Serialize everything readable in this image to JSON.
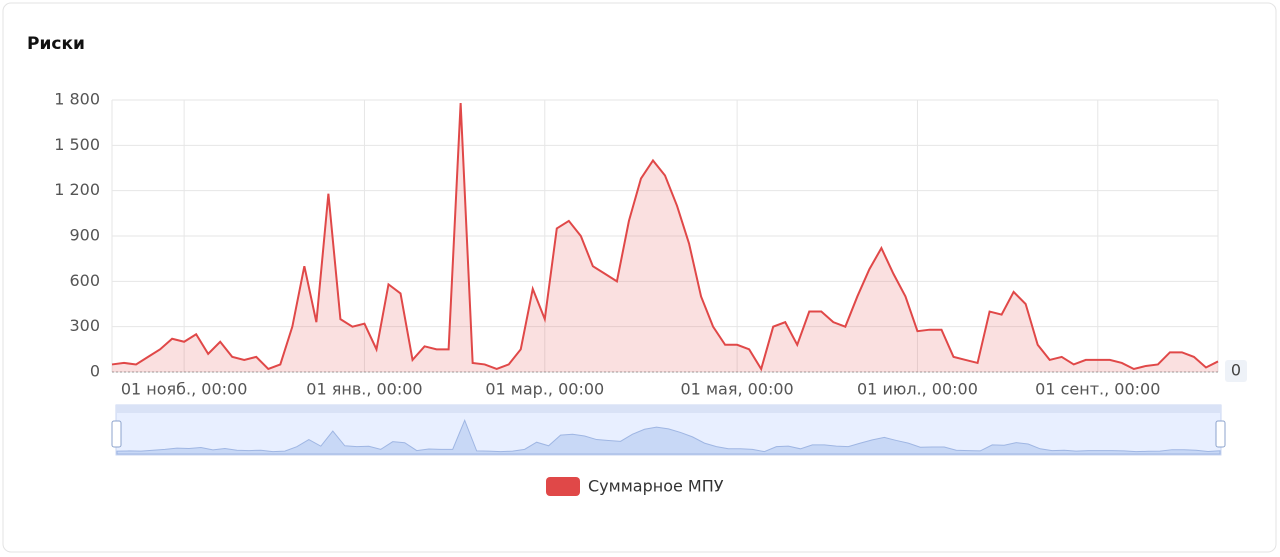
{
  "chart_data": {
    "type": "area",
    "title": "Риски",
    "categories": [
      null,
      null,
      null,
      null,
      null,
      null,
      "01 нояб., 00:00",
      null,
      null,
      null,
      null,
      null,
      null,
      null,
      null,
      null,
      null,
      null,
      null,
      null,
      null,
      "01 янв., 00:00",
      null,
      null,
      null,
      null,
      null,
      null,
      null,
      null,
      null,
      null,
      null,
      null,
      null,
      null,
      "01 мар., 00:00",
      null,
      null,
      null,
      null,
      null,
      null,
      null,
      null,
      null,
      null,
      null,
      null,
      null,
      null,
      null,
      "01 мая, 00:00",
      null,
      null,
      null,
      null,
      null,
      null,
      null,
      null,
      null,
      null,
      null,
      null,
      null,
      null,
      "01 июл., 00:00",
      null,
      null,
      null,
      null,
      null,
      null,
      null,
      null,
      null,
      null,
      null,
      null,
      null,
      null,
      "01 сент., 00:00",
      null,
      null,
      null,
      null,
      null,
      null,
      null,
      null,
      null,
      null
    ],
    "series": [
      {
        "name": "Суммарное МПУ",
        "color": "#e04848",
        "values": [
          50,
          60,
          50,
          100,
          150,
          220,
          200,
          250,
          120,
          200,
          100,
          80,
          100,
          20,
          50,
          300,
          700,
          330,
          1180,
          350,
          300,
          320,
          150,
          580,
          520,
          80,
          170,
          150,
          150,
          1780,
          60,
          50,
          20,
          50,
          150,
          550,
          350,
          950,
          1000,
          900,
          700,
          650,
          600,
          1000,
          1280,
          1400,
          1300,
          1100,
          850,
          500,
          300,
          180,
          180,
          150,
          20,
          300,
          330,
          180,
          400,
          400,
          330,
          300,
          500,
          680,
          820,
          650,
          500,
          270,
          280,
          280,
          100,
          80,
          60,
          400,
          380,
          530,
          450,
          180,
          80,
          100,
          50,
          80,
          80,
          80,
          60,
          20,
          40,
          50,
          130,
          130,
          100,
          30,
          70
        ]
      }
    ],
    "ylim": [
      0,
      1800
    ],
    "yticks": [
      0,
      300,
      600,
      900,
      {
        "value": 1200,
        "label": "1 200"
      },
      {
        "value": 1500,
        "label": "1 500"
      },
      {
        "value": 1800,
        "label": "1 800"
      }
    ],
    "grid": true,
    "legend": "bottom",
    "pointer_label": "0"
  }
}
